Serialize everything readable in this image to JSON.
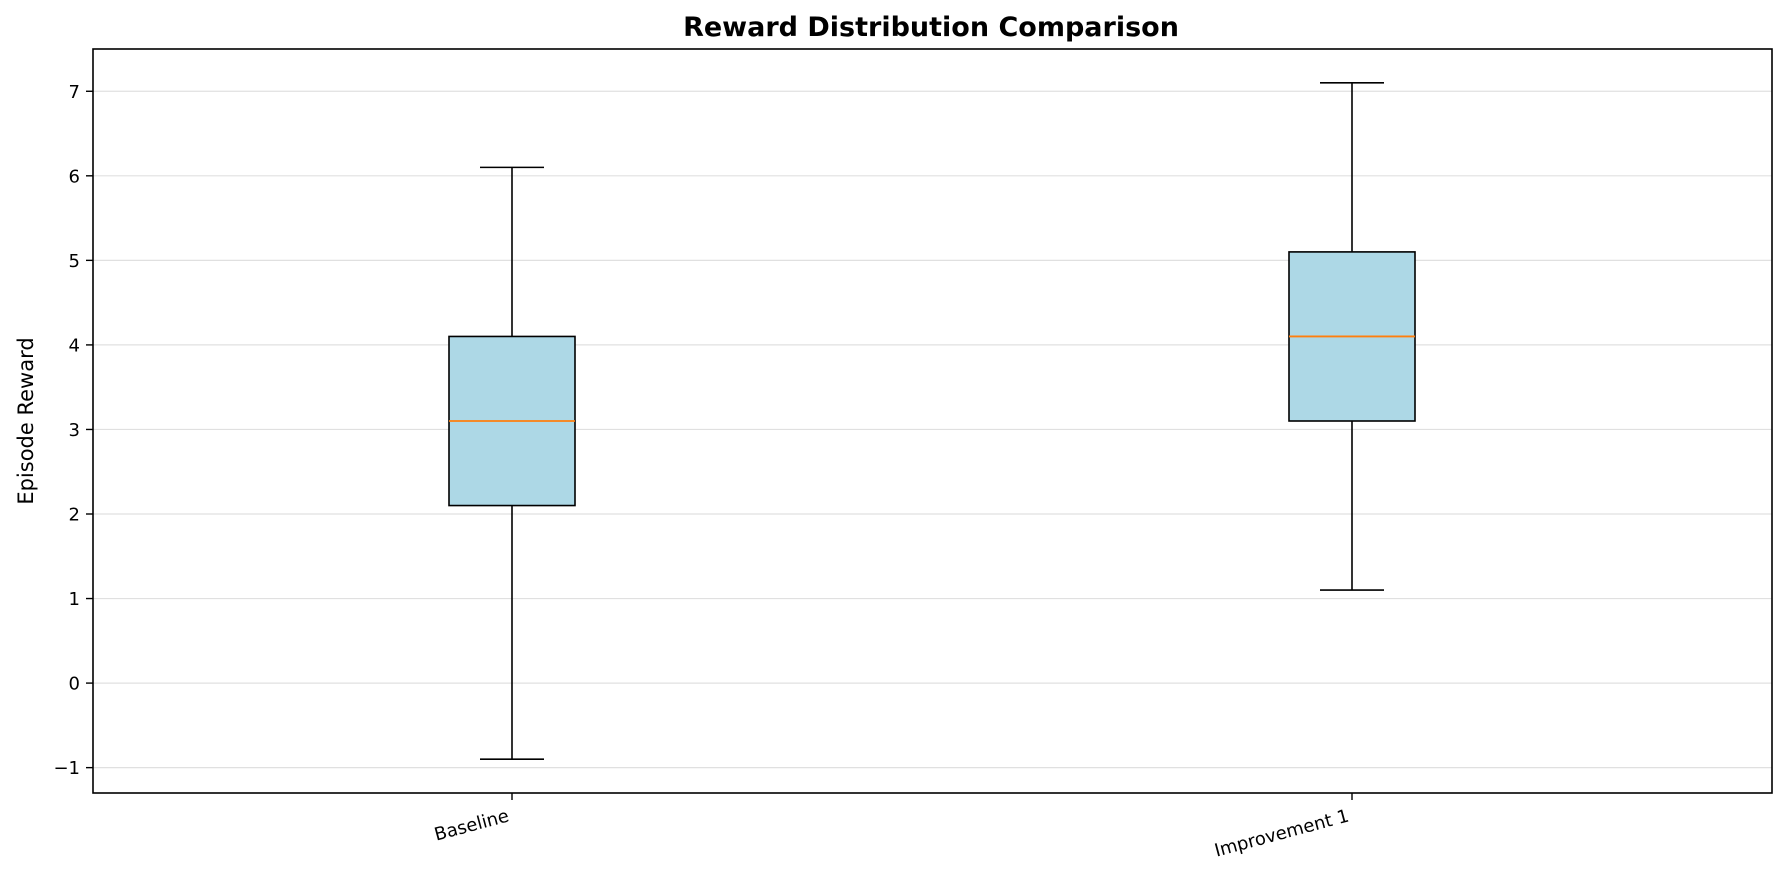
{
  "chart_data": {
    "type": "box",
    "title": "Reward Distribution Comparison",
    "xlabel": "",
    "ylabel": "Episode Reward",
    "ylim": [
      -1.3,
      7.5
    ],
    "yticks": [
      -1,
      0,
      1,
      2,
      3,
      4,
      5,
      6,
      7
    ],
    "grid": "y",
    "categories": [
      "Baseline",
      "Improvement 1"
    ],
    "boxes": [
      {
        "category": "Baseline",
        "whisker_low": -0.9,
        "q1": 2.1,
        "median": 3.1,
        "q3": 4.1,
        "whisker_high": 6.1
      },
      {
        "category": "Improvement 1",
        "whisker_low": 1.1,
        "q1": 3.1,
        "median": 4.1,
        "q3": 5.1,
        "whisker_high": 7.1
      }
    ],
    "colors": {
      "box_fill": "#add8e6",
      "median": "#ff7f0e",
      "grid": "#e0e0e0",
      "frame": "#000000"
    }
  }
}
